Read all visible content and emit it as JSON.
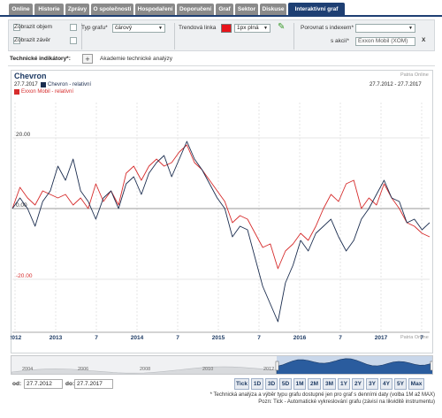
{
  "tabs": [
    {
      "label": "Online",
      "active": false
    },
    {
      "label": "Historie",
      "active": false
    },
    {
      "label": "Zprávy",
      "active": false
    },
    {
      "label": "O společnosti",
      "active": false
    },
    {
      "label": "Hospodaření",
      "active": false
    },
    {
      "label": "Doporučení",
      "active": false
    },
    {
      "label": "Graf",
      "active": false
    },
    {
      "label": "Sektor",
      "active": false
    },
    {
      "label": "Diskuse",
      "active": false
    },
    {
      "label": "Interaktivní graf",
      "active": true
    }
  ],
  "controls": {
    "show_volume": "Zobrazit objem",
    "show_close": "Zobrazit závěr",
    "chart_type_label": "Typ grafu*",
    "chart_type_value": "čárový",
    "trend_label": "Trendová linka",
    "trend_color": "#e8141a",
    "trend_style": "1px plná",
    "compare_index_label": "Porovnat s indexem*",
    "compare_index_value": "",
    "compare_stock_label": "s akcií*",
    "compare_stock_value": "Exxon Mobil (XOM)",
    "clear_label": "X"
  },
  "indicators": {
    "label": "Technické indikátory*:",
    "add": "+",
    "academy": "Akademie technické analýzy"
  },
  "chart": {
    "title": "Chevron",
    "source": "Patria Online",
    "source_bottom": "Patria Online",
    "date": "27.7.2017",
    "range": "27.7.2012 - 27.7.2017",
    "legend_primary": "Chevron - relativní",
    "legend_secondary": "Exxon Mobil - relativní",
    "navigator_labels": [
      "2004",
      "2006",
      "2008",
      "2010",
      "2012"
    ]
  },
  "chart_data": {
    "type": "line",
    "xlabel": "",
    "ylabel": "",
    "x_ticks": [
      "2012",
      "2013",
      "7",
      "2014",
      "7",
      "2015",
      "7",
      "2016",
      "7",
      "2017",
      "7"
    ],
    "y_ticks": [
      20,
      0,
      -20
    ],
    "y_tick_labels": [
      "20.00",
      "0.00",
      "-20.00"
    ],
    "ylim": [
      -35,
      30
    ],
    "grid": true,
    "series": [
      {
        "name": "Chevron - relativní",
        "color": "#1b2d4f",
        "values": [
          0,
          3,
          0,
          -5,
          2,
          5,
          12,
          8,
          14,
          5,
          2,
          -3,
          3,
          5,
          0,
          7,
          9,
          4,
          10,
          13,
          15,
          9,
          14,
          19,
          14,
          11,
          7,
          3,
          0,
          -8,
          -5,
          -6,
          -14,
          -22,
          -27,
          -32,
          -21,
          -16,
          -9,
          -12,
          -7,
          -5,
          -3,
          -8,
          -12,
          -9,
          -3,
          0,
          4,
          8,
          3,
          2,
          -4,
          -3,
          -6,
          -4
        ]
      },
      {
        "name": "Exxon Mobil - relativní",
        "color": "#d62c2c",
        "values": [
          0,
          6,
          3,
          1,
          5,
          4,
          3,
          4,
          1,
          3,
          0,
          7,
          2,
          5,
          1,
          10,
          12,
          8,
          12,
          14,
          12,
          13,
          16,
          18,
          13,
          11,
          8,
          5,
          2,
          -4,
          -2,
          -3,
          -7,
          -11,
          -10,
          -17,
          -12,
          -10,
          -7,
          -9,
          -5,
          0,
          4,
          2,
          7,
          8,
          0,
          3,
          1,
          7,
          3,
          0,
          -4,
          -5,
          -7,
          -8
        ]
      }
    ]
  },
  "range_start_label": "od:",
  "range_start": "27.7.2012",
  "range_end_label": "do:",
  "range_end": "27.7.2017",
  "range_buttons": [
    "Tick",
    "1D",
    "3D",
    "5D",
    "1M",
    "2M",
    "3M",
    "1Y",
    "2Y",
    "3Y",
    "4Y",
    "5Y",
    "Max"
  ],
  "footnotes": [
    "* Technická analýza a výběr typu grafu dostupné jen pro graf s denními daty (volba 1M až MAX)",
    "Pozn: Tick - Automatické vykreslování grafu (závisí na likviditě instrumentu)"
  ]
}
